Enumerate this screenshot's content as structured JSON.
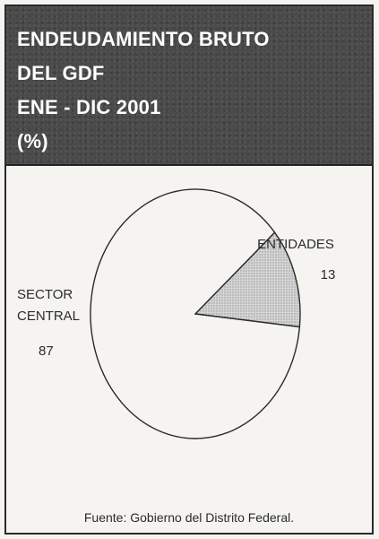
{
  "header": {
    "lines": [
      "ENDEUDAMIENTO BRUTO",
      "DEL GDF",
      "ENE - DIC 2001",
      "(%)"
    ],
    "bg_color": "#4a4a4a",
    "text_color": "#ffffff"
  },
  "chart_data": {
    "type": "pie",
    "slices": [
      {
        "label": "ENTIDADES",
        "value": 13,
        "fill": "#cfcfcf"
      },
      {
        "label_lines": [
          "SECTOR",
          "CENTRAL"
        ],
        "value": 87,
        "fill": "#f5f4f1"
      }
    ]
  },
  "source_text": "Fuente:  Gobierno del Distrito Federal."
}
